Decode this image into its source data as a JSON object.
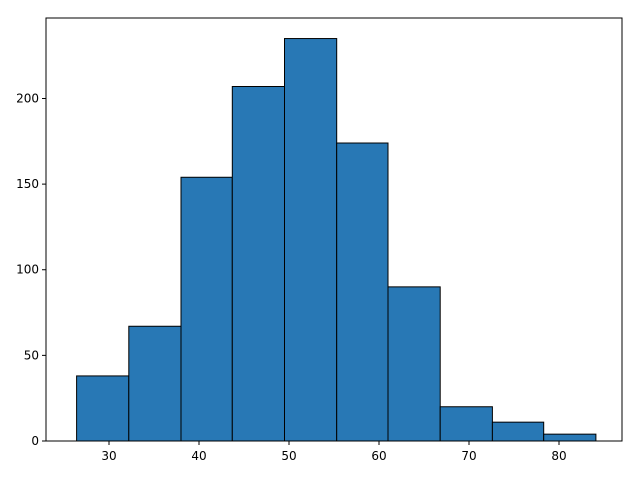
{
  "chart_data": {
    "type": "histogram",
    "bins": [
      26.4,
      32.2,
      38.0,
      43.7,
      49.5,
      55.3,
      61.0,
      66.8,
      72.6,
      78.3,
      84.1
    ],
    "values": [
      38,
      67,
      154,
      207,
      235,
      174,
      90,
      20,
      11,
      4
    ],
    "color": "#2878b5",
    "edgecolor": "#000000",
    "xlim": [
      23.0,
      87.0
    ],
    "xticks": [
      30,
      40,
      50,
      60,
      70,
      80
    ],
    "ylim": [
      0,
      247
    ],
    "yticks": [
      0,
      50,
      100,
      150,
      200
    ],
    "grid": false
  }
}
